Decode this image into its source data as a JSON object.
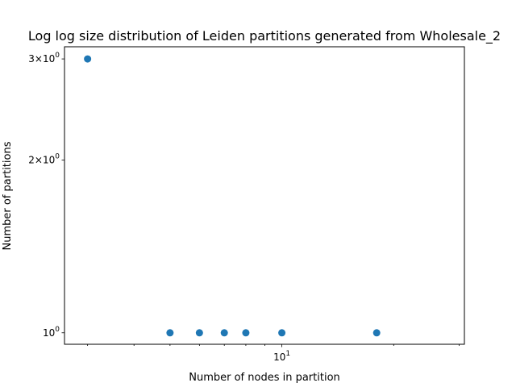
{
  "chart_data": {
    "type": "scatter",
    "title": "Log log size distribution of Leiden partitions generated from Wholesale_2",
    "xlabel": "Number of nodes in partition",
    "ylabel": "Number of partitions",
    "xscale": "log",
    "yscale": "log",
    "xlim": [
      2.6,
      31
    ],
    "ylim": [
      0.955,
      3.15
    ],
    "grid": false,
    "marker_color": "#1f77b4",
    "series": [
      {
        "x": [
          3,
          5,
          6,
          7,
          8,
          10,
          18
        ],
        "y": [
          3,
          1,
          1,
          1,
          1,
          1,
          1
        ]
      }
    ],
    "x_major_ticks": [
      {
        "value": 10,
        "base": "10",
        "exp": "1"
      }
    ],
    "x_minor_ticks": [
      3,
      4,
      5,
      6,
      7,
      8,
      9,
      20,
      30
    ],
    "y_ticks": [
      {
        "value": 1,
        "base": "10",
        "exp": "0",
        "prefix": ""
      },
      {
        "value": 2,
        "base": "10",
        "exp": "0",
        "prefix": "2×"
      },
      {
        "value": 3,
        "base": "10",
        "exp": "0",
        "prefix": "3×"
      }
    ]
  }
}
